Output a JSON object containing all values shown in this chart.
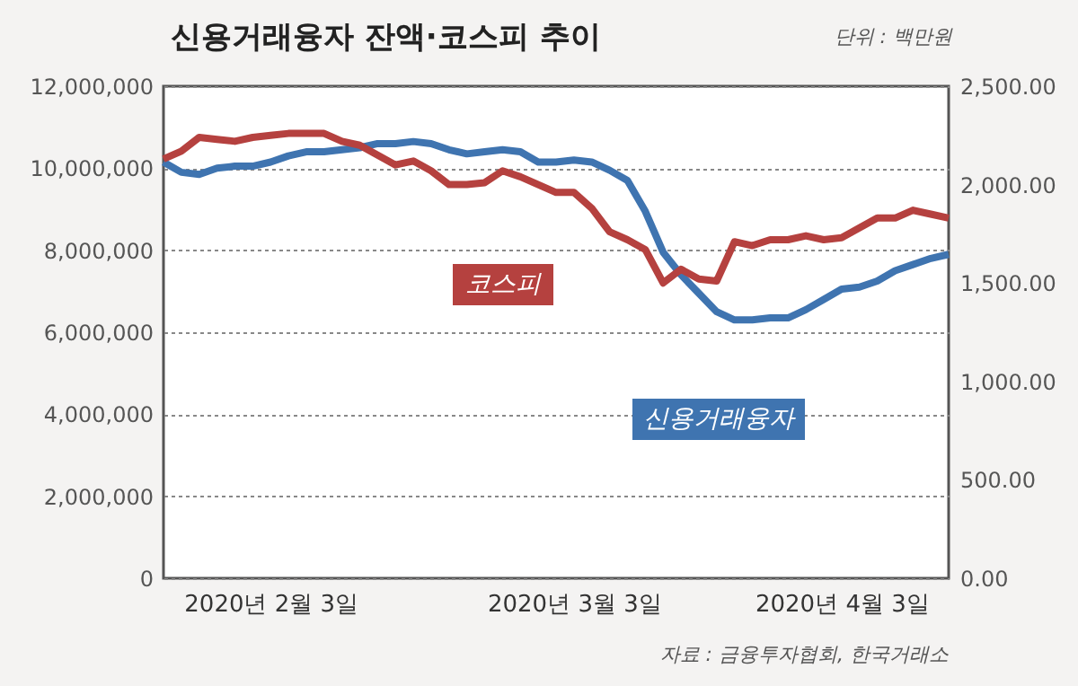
{
  "chart_data": {
    "type": "line",
    "title": "신용거래융자 잔액·코스피 추이",
    "annotations": [
      "단위 : 백만원",
      "자료 : 금융투자협회, 한국거래소"
    ],
    "categories": [
      null,
      null,
      null,
      null,
      null,
      null,
      "2020년 2월 3일",
      null,
      null,
      null,
      null,
      null,
      null,
      null,
      null,
      null,
      null,
      null,
      null,
      null,
      null,
      null,
      null,
      "2020년 3월 3일",
      null,
      null,
      null,
      null,
      null,
      null,
      null,
      null,
      null,
      null,
      null,
      null,
      null,
      null,
      "2020년 4월 3일",
      null,
      null,
      null,
      null,
      null,
      null
    ],
    "series": [
      {
        "name": "신용거래융자",
        "color": "#3f74b0",
        "axis": "y",
        "values": [
          10150000,
          9900000,
          9850000,
          10000000,
          10050000,
          10050000,
          10150000,
          10300000,
          10400000,
          10400000,
          10450000,
          10500000,
          10600000,
          10600000,
          10650000,
          10600000,
          10450000,
          10350000,
          10400000,
          10450000,
          10400000,
          10150000,
          10150000,
          10200000,
          10150000,
          9950000,
          9700000,
          8950000,
          7950000,
          7400000,
          6950000,
          6500000,
          6300000,
          6300000,
          6350000,
          6350000,
          6550000,
          6800000,
          7050000,
          7100000,
          7250000,
          7500000,
          7650000,
          7800000,
          7900000
        ]
      },
      {
        "name": "코스피",
        "color": "#b5413f",
        "axis": "y2",
        "values": [
          2130,
          2170,
          2240,
          2230,
          2220,
          2240,
          2250,
          2260,
          2260,
          2260,
          2220,
          2200,
          2150,
          2100,
          2120,
          2070,
          2000,
          2000,
          2010,
          2070,
          2040,
          2000,
          1960,
          1960,
          1880,
          1760,
          1720,
          1670,
          1500,
          1570,
          1520,
          1510,
          1710,
          1690,
          1720,
          1720,
          1740,
          1720,
          1730,
          1780,
          1830,
          1830,
          1870,
          1850,
          1830
        ]
      }
    ],
    "ylim": [
      0,
      12000000
    ],
    "yticks": [
      {
        "value": 0,
        "label": "0"
      },
      {
        "value": 2000000,
        "label": "2,000,000"
      },
      {
        "value": 4000000,
        "label": "4,000,000"
      },
      {
        "value": 6000000,
        "label": "6,000,000"
      },
      {
        "value": 8000000,
        "label": "8,000,000"
      },
      {
        "value": 10000000,
        "label": "10,000,000"
      },
      {
        "value": 12000000,
        "label": "12,000,000"
      }
    ],
    "y2lim": [
      0,
      2500
    ],
    "y2ticks": [
      {
        "value": 0,
        "label": "0.00"
      },
      {
        "value": 500,
        "label": "500.00"
      },
      {
        "value": 1000,
        "label": "1,000.00"
      },
      {
        "value": 1500,
        "label": "1,500.00"
      },
      {
        "value": 2000,
        "label": "2,000.00"
      },
      {
        "value": 2500,
        "label": "2,500.00"
      }
    ],
    "grid": "y"
  }
}
